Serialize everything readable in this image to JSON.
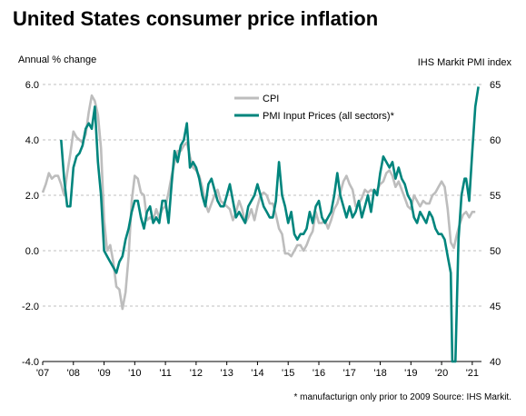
{
  "title": "United States consumer price inflation",
  "footnote": "* manufacturign only prior to 2009 Source: IHS Markit.",
  "chart_data": {
    "type": "line",
    "title": "United States consumer price inflation",
    "ylabel_left": "Annual % change",
    "ylabel_right": "IHS Markit PMI index",
    "xlim": [
      2007.0,
      2021.3
    ],
    "x_ticks": [
      2007,
      2008,
      2009,
      2010,
      2011,
      2012,
      2013,
      2014,
      2015,
      2016,
      2017,
      2018,
      2019,
      2020,
      2021
    ],
    "x_tick_labels": [
      "'07",
      "'08",
      "'09",
      "'10",
      "'11",
      "'12",
      "'13",
      "'14",
      "'15",
      "'16",
      "'17",
      "'18",
      "'19",
      "'20",
      "'21"
    ],
    "y_left": {
      "lim": [
        -4.0,
        6.0
      ],
      "ticks": [
        -4.0,
        -2.0,
        0.0,
        2.0,
        4.0,
        6.0
      ],
      "tick_labels": [
        "-4.0",
        "-2.0",
        "0.0",
        "2.0",
        "4.0",
        "6.0"
      ]
    },
    "y_right": {
      "lim": [
        40,
        65
      ],
      "ticks": [
        40,
        45,
        50,
        55,
        60,
        65
      ],
      "tick_labels": [
        "40",
        "45",
        "50",
        "55",
        "60",
        "65"
      ]
    },
    "grid": "horizontal dashed",
    "legend": "top-center",
    "series": [
      {
        "name": "CPI",
        "axis": "left",
        "color": "#bdbdbd",
        "points": [
          [
            2007.0,
            2.1
          ],
          [
            2007.1,
            2.4
          ],
          [
            2007.2,
            2.8
          ],
          [
            2007.3,
            2.6
          ],
          [
            2007.4,
            2.7
          ],
          [
            2007.5,
            2.7
          ],
          [
            2007.6,
            2.4
          ],
          [
            2007.7,
            2.0
          ],
          [
            2007.8,
            2.8
          ],
          [
            2007.9,
            3.5
          ],
          [
            2008.0,
            4.3
          ],
          [
            2008.1,
            4.1
          ],
          [
            2008.2,
            4.0
          ],
          [
            2008.3,
            3.9
          ],
          [
            2008.4,
            4.2
          ],
          [
            2008.5,
            5.0
          ],
          [
            2008.6,
            5.6
          ],
          [
            2008.7,
            5.4
          ],
          [
            2008.8,
            4.9
          ],
          [
            2008.9,
            3.7
          ],
          [
            2009.0,
            1.1
          ],
          [
            2009.1,
            0.0
          ],
          [
            2009.2,
            0.2
          ],
          [
            2009.3,
            -0.4
          ],
          [
            2009.4,
            -1.3
          ],
          [
            2009.5,
            -1.4
          ],
          [
            2009.6,
            -2.1
          ],
          [
            2009.7,
            -1.5
          ],
          [
            2009.8,
            -0.2
          ],
          [
            2009.9,
            1.8
          ],
          [
            2010.0,
            2.7
          ],
          [
            2010.1,
            2.6
          ],
          [
            2010.2,
            2.1
          ],
          [
            2010.3,
            2.0
          ],
          [
            2010.4,
            1.1
          ],
          [
            2010.5,
            1.2
          ],
          [
            2010.6,
            1.1
          ],
          [
            2010.7,
            1.5
          ],
          [
            2010.8,
            1.2
          ],
          [
            2010.9,
            1.5
          ],
          [
            2011.0,
            1.6
          ],
          [
            2011.1,
            2.1
          ],
          [
            2011.2,
            2.7
          ],
          [
            2011.3,
            3.2
          ],
          [
            2011.4,
            3.6
          ],
          [
            2011.5,
            3.6
          ],
          [
            2011.6,
            3.8
          ],
          [
            2011.7,
            3.9
          ],
          [
            2011.8,
            3.4
          ],
          [
            2011.9,
            3.0
          ],
          [
            2012.0,
            2.9
          ],
          [
            2012.1,
            2.7
          ],
          [
            2012.2,
            2.3
          ],
          [
            2012.3,
            1.7
          ],
          [
            2012.4,
            1.4
          ],
          [
            2012.5,
            1.7
          ],
          [
            2012.6,
            2.0
          ],
          [
            2012.7,
            2.2
          ],
          [
            2012.8,
            1.8
          ],
          [
            2012.9,
            1.7
          ],
          [
            2013.0,
            1.6
          ],
          [
            2013.1,
            1.5
          ],
          [
            2013.2,
            1.1
          ],
          [
            2013.3,
            1.4
          ],
          [
            2013.4,
            1.8
          ],
          [
            2013.5,
            1.5
          ],
          [
            2013.6,
            1.0
          ],
          [
            2013.7,
            1.2
          ],
          [
            2013.8,
            1.5
          ],
          [
            2013.9,
            1.1
          ],
          [
            2014.0,
            1.6
          ],
          [
            2014.1,
            2.0
          ],
          [
            2014.2,
            2.1
          ],
          [
            2014.3,
            2.0
          ],
          [
            2014.4,
            1.7
          ],
          [
            2014.5,
            1.7
          ],
          [
            2014.6,
            1.3
          ],
          [
            2014.7,
            0.8
          ],
          [
            2014.8,
            0.6
          ],
          [
            2014.9,
            -0.1
          ],
          [
            2015.0,
            -0.1
          ],
          [
            2015.1,
            -0.2
          ],
          [
            2015.2,
            0.0
          ],
          [
            2015.3,
            0.2
          ],
          [
            2015.4,
            0.2
          ],
          [
            2015.5,
            0.0
          ],
          [
            2015.6,
            0.2
          ],
          [
            2015.7,
            0.5
          ],
          [
            2015.8,
            0.7
          ],
          [
            2015.9,
            1.4
          ],
          [
            2016.0,
            1.0
          ],
          [
            2016.1,
            1.0
          ],
          [
            2016.2,
            1.1
          ],
          [
            2016.3,
            0.8
          ],
          [
            2016.4,
            1.1
          ],
          [
            2016.5,
            1.5
          ],
          [
            2016.6,
            1.7
          ],
          [
            2016.7,
            2.1
          ],
          [
            2016.8,
            2.5
          ],
          [
            2016.9,
            2.7
          ],
          [
            2017.0,
            2.4
          ],
          [
            2017.1,
            2.2
          ],
          [
            2017.2,
            1.6
          ],
          [
            2017.3,
            1.7
          ],
          [
            2017.4,
            1.9
          ],
          [
            2017.5,
            2.2
          ],
          [
            2017.6,
            2.1
          ],
          [
            2017.7,
            2.2
          ],
          [
            2017.8,
            2.1
          ],
          [
            2017.9,
            2.2
          ],
          [
            2018.0,
            2.4
          ],
          [
            2018.1,
            2.5
          ],
          [
            2018.2,
            2.8
          ],
          [
            2018.3,
            2.9
          ],
          [
            2018.4,
            2.7
          ],
          [
            2018.5,
            2.3
          ],
          [
            2018.6,
            2.5
          ],
          [
            2018.7,
            2.2
          ],
          [
            2018.8,
            1.9
          ],
          [
            2018.9,
            1.6
          ],
          [
            2019.0,
            1.5
          ],
          [
            2019.1,
            2.0
          ],
          [
            2019.2,
            1.8
          ],
          [
            2019.3,
            1.6
          ],
          [
            2019.4,
            1.8
          ],
          [
            2019.5,
            1.7
          ],
          [
            2019.6,
            1.7
          ],
          [
            2019.7,
            2.0
          ],
          [
            2019.8,
            2.1
          ],
          [
            2019.9,
            2.3
          ],
          [
            2020.0,
            2.5
          ],
          [
            2020.1,
            2.3
          ],
          [
            2020.2,
            1.5
          ],
          [
            2020.3,
            0.3
          ],
          [
            2020.4,
            0.1
          ],
          [
            2020.5,
            0.6
          ],
          [
            2020.6,
            1.0
          ],
          [
            2020.7,
            1.3
          ],
          [
            2020.8,
            1.4
          ],
          [
            2020.9,
            1.2
          ],
          [
            2021.0,
            1.4
          ],
          [
            2021.1,
            1.4
          ]
        ]
      },
      {
        "name": "PMI Input Prices (all sectors)*",
        "axis": "right",
        "color": "#00857d",
        "points": [
          [
            2007.6,
            60.0
          ],
          [
            2007.7,
            56.5
          ],
          [
            2007.8,
            54.0
          ],
          [
            2007.9,
            54.0
          ],
          [
            2008.0,
            57.5
          ],
          [
            2008.1,
            58.5
          ],
          [
            2008.2,
            58.8
          ],
          [
            2008.3,
            59.5
          ],
          [
            2008.4,
            61.0
          ],
          [
            2008.5,
            61.5
          ],
          [
            2008.6,
            61.0
          ],
          [
            2008.7,
            63.0
          ],
          [
            2008.8,
            58.0
          ],
          [
            2008.9,
            55.0
          ],
          [
            2009.0,
            50.0
          ],
          [
            2009.1,
            49.5
          ],
          [
            2009.2,
            49.0
          ],
          [
            2009.3,
            48.5
          ],
          [
            2009.4,
            48.0
          ],
          [
            2009.5,
            49.0
          ],
          [
            2009.6,
            49.5
          ],
          [
            2009.7,
            51.0
          ],
          [
            2009.8,
            52.0
          ],
          [
            2009.9,
            53.5
          ],
          [
            2010.0,
            54.5
          ],
          [
            2010.1,
            54.5
          ],
          [
            2010.2,
            53.0
          ],
          [
            2010.3,
            52.0
          ],
          [
            2010.4,
            53.5
          ],
          [
            2010.5,
            54.0
          ],
          [
            2010.6,
            52.5
          ],
          [
            2010.7,
            53.0
          ],
          [
            2010.8,
            52.5
          ],
          [
            2010.9,
            54.5
          ],
          [
            2011.0,
            54.5
          ],
          [
            2011.1,
            52.5
          ],
          [
            2011.2,
            56.0
          ],
          [
            2011.3,
            59.0
          ],
          [
            2011.4,
            58.0
          ],
          [
            2011.5,
            59.5
          ],
          [
            2011.6,
            60.0
          ],
          [
            2011.7,
            61.5
          ],
          [
            2011.8,
            57.5
          ],
          [
            2011.9,
            58.0
          ],
          [
            2012.0,
            57.5
          ],
          [
            2012.1,
            56.5
          ],
          [
            2012.2,
            55.0
          ],
          [
            2012.3,
            54.0
          ],
          [
            2012.4,
            56.0
          ],
          [
            2012.5,
            56.5
          ],
          [
            2012.6,
            55.5
          ],
          [
            2012.7,
            54.5
          ],
          [
            2012.8,
            54.0
          ],
          [
            2012.9,
            54.0
          ],
          [
            2013.0,
            55.0
          ],
          [
            2013.1,
            56.0
          ],
          [
            2013.2,
            54.5
          ],
          [
            2013.3,
            53.0
          ],
          [
            2013.4,
            53.5
          ],
          [
            2013.5,
            53.0
          ],
          [
            2013.6,
            52.5
          ],
          [
            2013.7,
            54.0
          ],
          [
            2013.8,
            54.5
          ],
          [
            2013.9,
            55.0
          ],
          [
            2014.0,
            56.0
          ],
          [
            2014.1,
            55.0
          ],
          [
            2014.2,
            54.0
          ],
          [
            2014.3,
            53.5
          ],
          [
            2014.4,
            53.0
          ],
          [
            2014.5,
            53.0
          ],
          [
            2014.6,
            54.5
          ],
          [
            2014.7,
            58.0
          ],
          [
            2014.8,
            55.0
          ],
          [
            2014.9,
            54.0
          ],
          [
            2015.0,
            52.5
          ],
          [
            2015.1,
            53.5
          ],
          [
            2015.2,
            51.5
          ],
          [
            2015.3,
            51.0
          ],
          [
            2015.4,
            51.5
          ],
          [
            2015.5,
            51.5
          ],
          [
            2015.6,
            52.0
          ],
          [
            2015.7,
            53.5
          ],
          [
            2015.8,
            52.5
          ],
          [
            2015.9,
            54.0
          ],
          [
            2016.0,
            54.5
          ],
          [
            2016.1,
            53.0
          ],
          [
            2016.2,
            52.5
          ],
          [
            2016.3,
            53.0
          ],
          [
            2016.4,
            53.5
          ],
          [
            2016.5,
            55.0
          ],
          [
            2016.6,
            57.0
          ],
          [
            2016.7,
            55.0
          ],
          [
            2016.8,
            54.0
          ],
          [
            2016.9,
            53.0
          ],
          [
            2017.0,
            54.0
          ],
          [
            2017.1,
            53.0
          ],
          [
            2017.2,
            53.5
          ],
          [
            2017.3,
            54.5
          ],
          [
            2017.4,
            53.0
          ],
          [
            2017.5,
            54.0
          ],
          [
            2017.6,
            55.0
          ],
          [
            2017.7,
            53.5
          ],
          [
            2017.8,
            55.5
          ],
          [
            2017.9,
            55.0
          ],
          [
            2018.0,
            57.0
          ],
          [
            2018.1,
            58.5
          ],
          [
            2018.2,
            58.0
          ],
          [
            2018.3,
            57.5
          ],
          [
            2018.4,
            58.0
          ],
          [
            2018.5,
            56.5
          ],
          [
            2018.6,
            57.5
          ],
          [
            2018.7,
            56.5
          ],
          [
            2018.8,
            56.0
          ],
          [
            2018.9,
            55.0
          ],
          [
            2019.0,
            54.5
          ],
          [
            2019.1,
            53.0
          ],
          [
            2019.2,
            52.5
          ],
          [
            2019.3,
            53.5
          ],
          [
            2019.4,
            53.0
          ],
          [
            2019.5,
            52.5
          ],
          [
            2019.6,
            53.5
          ],
          [
            2019.7,
            53.0
          ],
          [
            2019.8,
            52.0
          ],
          [
            2019.9,
            51.5
          ],
          [
            2020.0,
            51.5
          ],
          [
            2020.1,
            51.0
          ],
          [
            2020.2,
            49.5
          ],
          [
            2020.3,
            48.0
          ],
          [
            2020.35,
            40.0
          ],
          [
            2020.45,
            40.0
          ],
          [
            2020.55,
            51.0
          ],
          [
            2020.65,
            55.0
          ],
          [
            2020.75,
            56.5
          ],
          [
            2020.8,
            56.5
          ],
          [
            2020.9,
            54.5
          ],
          [
            2021.0,
            59.0
          ],
          [
            2021.1,
            63.0
          ],
          [
            2021.2,
            64.8
          ]
        ]
      }
    ]
  }
}
